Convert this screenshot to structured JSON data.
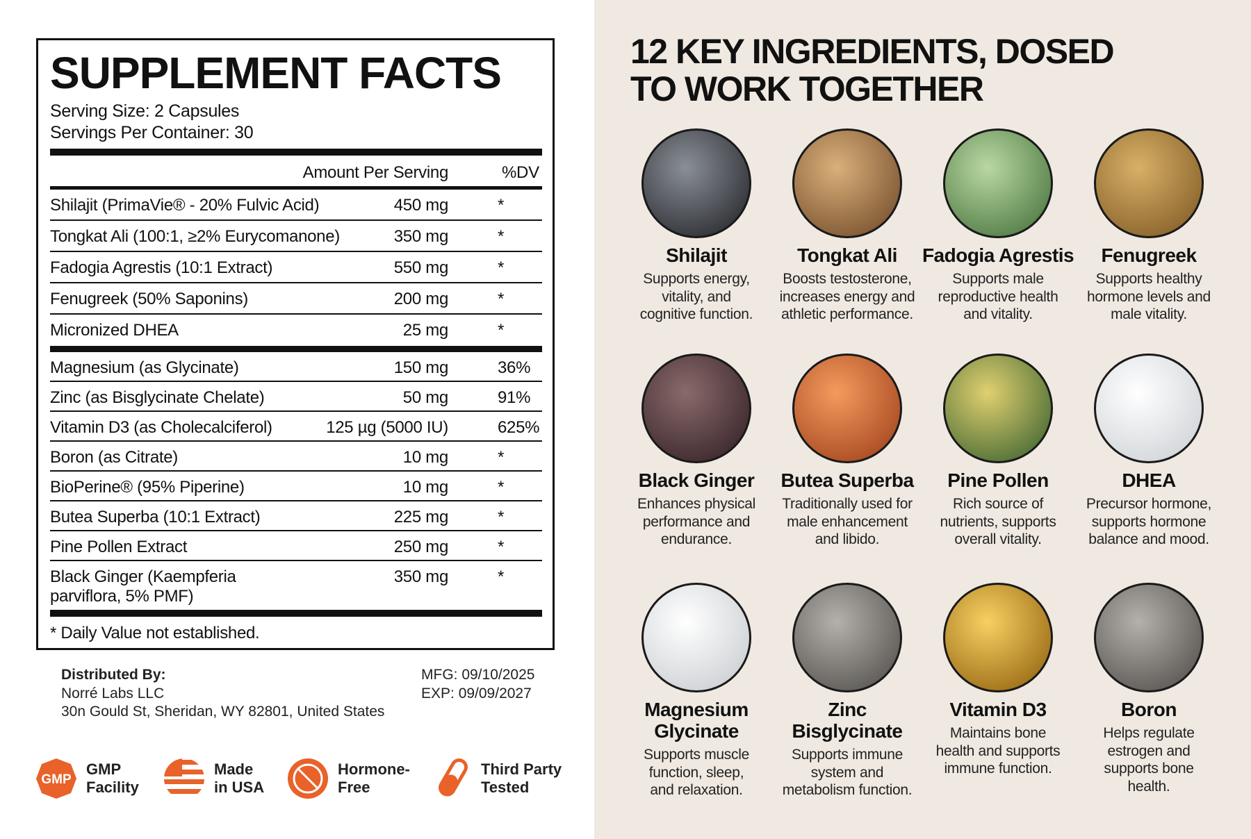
{
  "facts": {
    "title": "SUPPLEMENT FACTS",
    "serving_size": "Serving Size: 2 Capsules",
    "servings_per_container": "Servings Per Container: 30",
    "columns": [
      "Amount Per Serving",
      "%DV"
    ],
    "sections": [
      [
        [
          "Shilajit (PrimaVie® - 20% Fulvic Acid)",
          "450 mg",
          "*"
        ],
        [
          "Tongkat Ali (100:1, ≥2% Eurycomanone)",
          "350 mg",
          "*"
        ],
        [
          "Fadogia Agrestis (10:1 Extract)",
          "550 mg",
          "*"
        ],
        [
          "Fenugreek (50% Saponins)",
          "200 mg",
          "*"
        ],
        [
          "Micronized DHEA",
          "25 mg",
          "*"
        ]
      ],
      [
        [
          "Magnesium (as Glycinate)",
          "150 mg",
          "36%"
        ],
        [
          "Zinc (as Bisglycinate Chelate)",
          "50 mg",
          "91%"
        ],
        [
          "Vitamin D3 (as Cholecalciferol)",
          "125 µg (5000 IU)",
          "625%"
        ],
        [
          "Boron (as Citrate)",
          "10 mg",
          "*"
        ],
        [
          "BioPerine® (95% Piperine)",
          "10 mg",
          "*"
        ],
        [
          "Butea Superba (10:1 Extract)",
          "225 mg",
          "*"
        ],
        [
          "Pine Pollen Extract",
          "250 mg",
          "*"
        ],
        [
          "Black Ginger (Kaempferia\nparviflora, 5% PMF)",
          "350 mg",
          "*"
        ]
      ]
    ],
    "footnote": "* Daily Value not established."
  },
  "distributor": {
    "label": "Distributed By:",
    "name": "Norré Labs LLC",
    "address": "30n Gould St, Sheridan, WY 82801, United States",
    "mfg": "MFG: 09/10/2025",
    "exp": "EXP: 09/09/2027"
  },
  "badges": [
    {
      "icon_text": "GMP",
      "label": "GMP\nFacility"
    },
    {
      "label": "Made\nin USA"
    },
    {
      "label": "Hormone-\nFree"
    },
    {
      "label": "Third Party\nTested"
    }
  ],
  "ingredients": {
    "title": "12 KEY INGREDIENTS, DOSED\nTO WORK TOGETHER",
    "items": [
      {
        "name": "Shilajit",
        "description": "Supports energy,\nvitality, and\ncognitive function."
      },
      {
        "name": "Tongkat Ali",
        "description": "Boosts testosterone,\nincreases energy and\nathletic performance."
      },
      {
        "name": "Fadogia Agrestis",
        "description": "Supports male\nreproductive health\nand vitality."
      },
      {
        "name": "Fenugreek",
        "description": "Supports healthy\nhormone levels and\nmale vitality."
      },
      {
        "name": "Black Ginger",
        "description": "Enhances physical\nperformance and\nendurance."
      },
      {
        "name": "Butea Superba",
        "description": "Traditionally used for\nmale enhancement\nand libido."
      },
      {
        "name": "Pine Pollen",
        "description": "Rich source of\nnutrients, supports\noverall vitality."
      },
      {
        "name": "DHEA",
        "description": "Precursor hormone,\nsupports hormone\nbalance and mood."
      },
      {
        "name": "Magnesium\nGlycinate",
        "description": "Supports muscle\nfunction, sleep,\nand relaxation."
      },
      {
        "name": "Zinc\nBisglycinate",
        "description": "Supports immune\nsystem and\nmetabolism function."
      },
      {
        "name": "Vitamin D3",
        "description": "Maintains bone\nhealth and supports\nimmune function."
      },
      {
        "name": "Boron",
        "description": "Helps regulate\nestrogen and\nsupports bone\nhealth."
      }
    ]
  }
}
